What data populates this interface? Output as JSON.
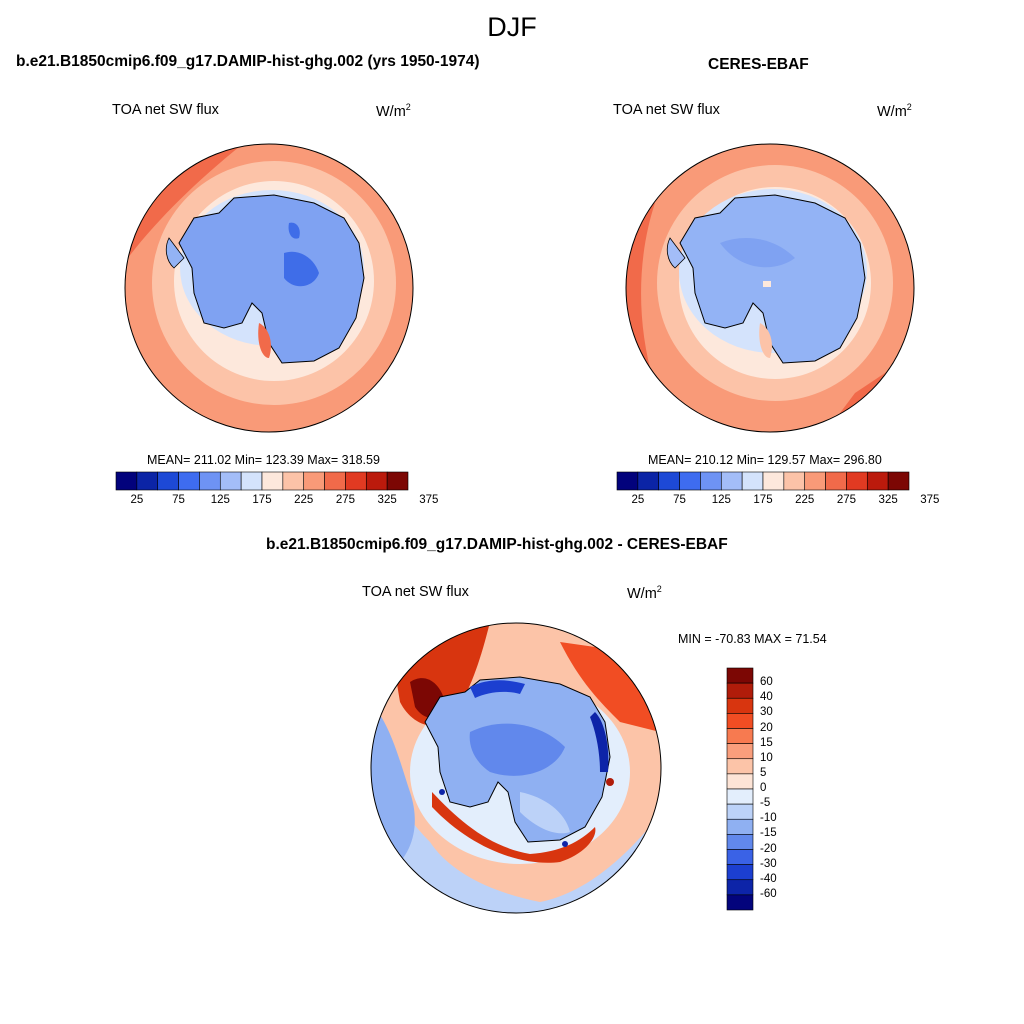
{
  "figure": {
    "title": "DJF"
  },
  "panels": [
    {
      "title": "b.e21.B1850cmip6.f09_g17.DAMIP-hist-ghg.002 (yrs 1950-1974)",
      "variable": "TOA net SW flux",
      "units": "W/m",
      "units_exp": "2",
      "stats": "MEAN= 211.02  Min= 123.39  Max= 318.59",
      "colorbar": {
        "ticks": [
          "25",
          "75",
          "125",
          "175",
          "225",
          "275",
          "325",
          "375"
        ],
        "colors": [
          "#02027c",
          "#0b24a6",
          "#1d49d6",
          "#3e6cf0",
          "#6e93f4",
          "#a3bdf8",
          "#d4e3fc",
          "#fde8dc",
          "#fcc3a8",
          "#f99a78",
          "#f16a4a",
          "#e13a22",
          "#bb1a0c",
          "#7c0704"
        ]
      }
    },
    {
      "title": "CERES-EBAF",
      "variable": "TOA net SW flux",
      "units": "W/m",
      "units_exp": "2",
      "stats": "MEAN= 210.12  Min= 129.57  Max= 296.80",
      "colorbar": {
        "ticks": [
          "25",
          "75",
          "125",
          "175",
          "225",
          "275",
          "325",
          "375"
        ],
        "colors": [
          "#02027c",
          "#0b24a6",
          "#1d49d6",
          "#3e6cf0",
          "#6e93f4",
          "#a3bdf8",
          "#d4e3fc",
          "#fde8dc",
          "#fcc3a8",
          "#f99a78",
          "#f16a4a",
          "#e13a22",
          "#bb1a0c",
          "#7c0704"
        ]
      }
    }
  ],
  "diff_panel": {
    "title": "b.e21.B1850cmip6.f09_g17.DAMIP-hist-ghg.002 - CERES-EBAF",
    "variable": "TOA net SW flux",
    "units": "W/m",
    "units_exp": "2",
    "stats": "MIN = -70.83 MAX =  71.54",
    "colorbar": {
      "ticks": [
        "60",
        "40",
        "30",
        "20",
        "15",
        "10",
        "5",
        "0",
        "-5",
        "-10",
        "-15",
        "-20",
        "-30",
        "-40",
        "-60"
      ],
      "colors": [
        "#7c0704",
        "#b01c0a",
        "#d8350f",
        "#f14d23",
        "#f77a50",
        "#f99e7c",
        "#fcc4a8",
        "#fde4d6",
        "#e3eefc",
        "#bcd2f8",
        "#8fb0f2",
        "#6188ec",
        "#3a62e6",
        "#1c3fd0",
        "#0d24a8",
        "#03047c"
      ]
    }
  },
  "colors": {
    "antarctica_low": "#7fa2f2",
    "antarctica_mid": "#93b3f5",
    "antarctica_dark": "#3f6de8",
    "ice_edge": "#bcd2f8",
    "ocean_inner": "#fde8dc",
    "ocean_mid": "#fcc3a8",
    "ocean_outer": "#f99a78",
    "ocean_hot": "#f16a4a"
  }
}
